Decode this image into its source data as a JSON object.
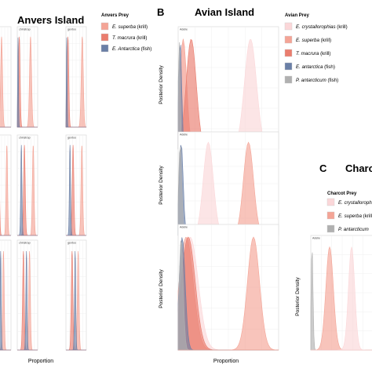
{
  "figure": {
    "panels": {
      "A": {
        "title": "Anvers Island",
        "legend_title": "Anvers Prey",
        "legend": [
          {
            "species": "E. superba",
            "suffix": " (krill)",
            "color": "#f4a496"
          },
          {
            "species": "T. macrura",
            "suffix": " (krill)",
            "color": "#ea7d6e"
          },
          {
            "species": "E. Antarctica",
            "suffix": " (fish)",
            "color": "#6a7fa6"
          }
        ],
        "subplot_labels": [
          "chinstrap",
          "gentoo"
        ],
        "x_label": "Proportion"
      },
      "B": {
        "letter": "B",
        "title": "Avian Island",
        "legend_title": "Avian Prey",
        "legend": [
          {
            "species": "E. crystallorophias",
            "suffix": " (krill)",
            "color": "#fbd7d9"
          },
          {
            "species": "E. superba",
            "suffix": " (krill)",
            "color": "#f4a496"
          },
          {
            "species": "T. macrura",
            "suffix": " (krill)",
            "color": "#ea7d6e"
          },
          {
            "species": "E. antarctica",
            "suffix": " (fish)",
            "color": "#6a7fa6"
          },
          {
            "species": "P. antarcticum",
            "suffix": " (fish)",
            "color": "#b0b0b0"
          }
        ],
        "subplot_labels": [
          "Adelie",
          "Adelie",
          "Adelie"
        ],
        "y_label": "Posterior Density",
        "x_label": "Proportion"
      },
      "C": {
        "letter": "C",
        "title": "Charcot",
        "legend_title": "Charcot Prey",
        "legend": [
          {
            "species": "E. crystallorophias",
            "suffix": "",
            "color": "#fbd7d9"
          },
          {
            "species": "E. superba",
            "suffix": " (krill)",
            "color": "#f4a496"
          },
          {
            "species": "P. antarcticum",
            "suffix": "",
            "color": "#b0b0b0"
          }
        ],
        "subplot_labels": [
          "Adelie"
        ],
        "y_label": "Posterior Density"
      }
    }
  },
  "chart_data": [
    {
      "type": "area",
      "panel": "B-row1",
      "subtitle": "Adelie",
      "xlim": [
        0,
        1
      ],
      "series": [
        {
          "name": "E. crystallorophias",
          "color": "#fbd7d9",
          "peak": 0.05,
          "sd": 0.03
        },
        {
          "name": "E. superba",
          "color": "#f4a496",
          "peak": 0.05,
          "sd": 0.035
        },
        {
          "name": "T. macrura",
          "color": "#ea7d6e",
          "peak": 0.13,
          "sd": 0.05
        },
        {
          "name": "E. antarctica",
          "color": "#6a7fa6",
          "peak": 0.02,
          "sd": 0.015
        },
        {
          "name": "P. antarcticum",
          "color": "#b0b0b0",
          "peak": 0.01,
          "sd": 0.01
        },
        {
          "name": "E. crystallorophias",
          "color": "#fbd7d9",
          "peak": 0.72,
          "sd": 0.06
        }
      ]
    },
    {
      "type": "area",
      "panel": "B-row2",
      "subtitle": "Adelie",
      "xlim": [
        0,
        1
      ],
      "series": [
        {
          "name": "E. crystallorophias",
          "color": "#fbd7d9",
          "peak": 0.3,
          "sd": 0.05
        },
        {
          "name": "E. superba",
          "color": "#f4a496",
          "peak": 0.7,
          "sd": 0.05
        },
        {
          "name": "E. antarctica",
          "color": "#6a7fa6",
          "peak": 0.03,
          "sd": 0.02
        },
        {
          "name": "P. antarcticum",
          "color": "#b0b0b0",
          "peak": 0.02,
          "sd": 0.015
        }
      ]
    },
    {
      "type": "area",
      "panel": "B-row3",
      "subtitle": "Adelie",
      "xlim": [
        0,
        1
      ],
      "series": [
        {
          "name": "E. crystallorophias",
          "color": "#fbd7d9",
          "peak": 0.12,
          "sd": 0.08
        },
        {
          "name": "E. superba",
          "color": "#f4a496",
          "peak": 0.08,
          "sd": 0.07
        },
        {
          "name": "T. macrura",
          "color": "#ea7d6e",
          "peak": 0.1,
          "sd": 0.07
        },
        {
          "name": "E. antarctica",
          "color": "#6a7fa6",
          "peak": 0.04,
          "sd": 0.03
        },
        {
          "name": "P. antarcticum",
          "color": "#b0b0b0",
          "peak": 0.03,
          "sd": 0.02
        },
        {
          "name": "E. superba",
          "color": "#f4a496",
          "peak": 0.75,
          "sd": 0.06
        }
      ]
    },
    {
      "type": "area",
      "panel": "C-row1",
      "subtitle": "Adelie",
      "xlim": [
        0,
        1
      ],
      "series": [
        {
          "name": "P. antarcticum",
          "color": "#b0b0b0",
          "peak": 0.02,
          "sd": 0.015
        },
        {
          "name": "E. superba",
          "color": "#f4a496",
          "peak": 0.3,
          "sd": 0.06
        },
        {
          "name": "E. crystallorophias",
          "color": "#fbd7d9",
          "peak": 0.65,
          "sd": 0.05
        }
      ]
    },
    {
      "type": "area",
      "panel": "A-grid",
      "subtitle": "chinstrap / gentoo",
      "xlim": [
        0,
        1
      ],
      "series": [
        {
          "name": "E. superba",
          "color": "#f4a496",
          "peak": 0.85,
          "sd": 0.03
        },
        {
          "name": "T. macrura",
          "color": "#ea7d6e",
          "peak": 0.1,
          "sd": 0.03
        },
        {
          "name": "E. Antarctica",
          "color": "#6a7fa6",
          "peak": 0.05,
          "sd": 0.02
        }
      ]
    }
  ]
}
